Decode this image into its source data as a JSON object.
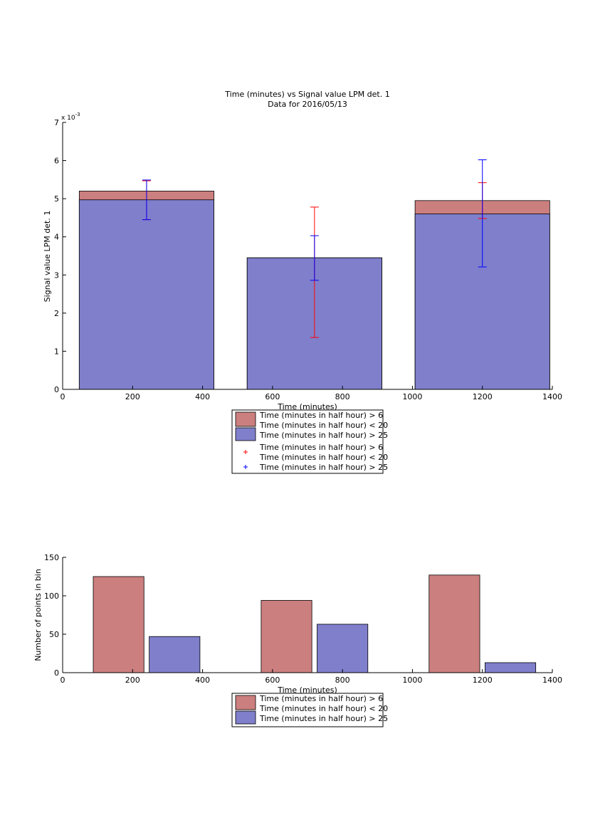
{
  "chart_data": [
    {
      "type": "bar",
      "title": "Time (minutes) vs Signal value LPM det. 1",
      "subtitle": "Data for 2016/05/13",
      "xlabel": "Time (minutes)",
      "ylabel": "Signal value LPM det. 1",
      "y_exponent_label": "x 10",
      "y_exponent_power": "-3",
      "xlim": [
        0,
        1400
      ],
      "ylim": [
        0,
        7
      ],
      "x_ticks": [
        0,
        200,
        400,
        600,
        800,
        1000,
        1200,
        1400
      ],
      "y_ticks": [
        0,
        1,
        2,
        3,
        4,
        5,
        6,
        7
      ],
      "grid": false,
      "legend_position": "below axes",
      "bar_width": 385,
      "series": [
        {
          "name": "Time (minutes in half hour) > 6\nTime (minutes in half hour) < 20",
          "color": "#cc7f7f",
          "x": [
            240,
            720,
            1200
          ],
          "values": [
            5.2,
            3.45,
            4.95
          ]
        },
        {
          "name": "Time (minutes in half hour) > 25",
          "color": "#7f7fcc",
          "x": [
            240,
            720,
            1200
          ],
          "values": [
            4.97,
            3.45,
            4.6
          ]
        }
      ],
      "error_bars": [
        {
          "name": "Time (minutes in half hour) > 6\nTime (minutes in half hour) < 20",
          "color": "#ff0000",
          "x": [
            240,
            720,
            1200
          ],
          "lower": [
            4.45,
            1.36,
            4.48
          ],
          "upper": [
            5.47,
            4.78,
            5.42
          ]
        },
        {
          "name": "Time (minutes in half hour) > 25",
          "color": "#0000ff",
          "x": [
            240,
            720,
            1200
          ],
          "lower": [
            4.45,
            2.86,
            3.21
          ],
          "upper": [
            5.49,
            4.03,
            6.02
          ]
        }
      ],
      "legend": [
        {
          "kind": "patch",
          "color": "#cc7f7f",
          "lines": [
            "Time (minutes in half hour) > 6",
            "Time (minutes in half hour) < 20"
          ]
        },
        {
          "kind": "patch",
          "color": "#7f7fcc",
          "lines": [
            "Time (minutes in half hour) > 25"
          ]
        },
        {
          "kind": "marker",
          "color": "#ff0000",
          "lines": [
            "Time (minutes in half hour) > 6",
            "Time (minutes in half hour) < 20"
          ]
        },
        {
          "kind": "marker",
          "color": "#0000ff",
          "lines": [
            "Time (minutes in half hour) > 25"
          ]
        }
      ]
    },
    {
      "type": "bar",
      "title": "",
      "xlabel": "Time (minutes)",
      "ylabel": "Number of points in bin",
      "xlim": [
        0,
        1400
      ],
      "ylim": [
        0,
        150
      ],
      "x_ticks": [
        0,
        200,
        400,
        600,
        800,
        1000,
        1200,
        1400
      ],
      "y_ticks": [
        0,
        50,
        100,
        150
      ],
      "grid": false,
      "legend_position": "below axes",
      "bar_width": 145,
      "series": [
        {
          "name": "Time (minutes in half hour) > 6\nTime (minutes in half hour) < 20",
          "color": "#cc7f7f",
          "x": [
            160,
            640,
            1120
          ],
          "values": [
            125,
            94,
            127
          ]
        },
        {
          "name": "Time (minutes in half hour) > 25",
          "color": "#7f7fcc",
          "x": [
            320,
            800,
            1280
          ],
          "values": [
            47,
            63,
            13
          ]
        }
      ],
      "legend": [
        {
          "kind": "patch",
          "color": "#cc7f7f",
          "lines": [
            "Time (minutes in half hour) > 6",
            "Time (minutes in half hour) < 20"
          ]
        },
        {
          "kind": "patch",
          "color": "#7f7fcc",
          "lines": [
            "Time (minutes in half hour) > 25"
          ]
        }
      ]
    }
  ]
}
